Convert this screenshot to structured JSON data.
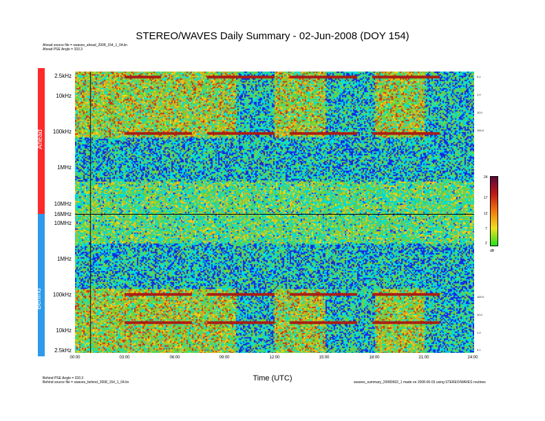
{
  "title": "STEREO/WAVES Daily Summary - 02-Jun-2008 (DOY 154)",
  "header_meta": {
    "ahead_source": "Ahead source file = swaves_ahead_2008_154_1_04.lin",
    "ahead_pse": "Ahead PSE Angle = 333.3"
  },
  "footer_meta": {
    "behind_pse": "Behind PSE Angle = 333.3",
    "behind_source": "Behind source file = swaves_behind_2008_154_1_04.lin",
    "generated": "swaves_summary_20080602_1 made on 2008-06-03 using STEREO/WAVES routines"
  },
  "sidebar": {
    "ahead_label": "Ahead",
    "behind_label": "Behind",
    "ahead_color": "#ff2a2a",
    "behind_color": "#2d9bea"
  },
  "axis": {
    "xlabel": "Time (UTC)",
    "x_ticks": [
      "00:00",
      "03:00",
      "06:00",
      "09:00",
      "12:00",
      "15:00",
      "18:00",
      "21:00",
      "24:00"
    ],
    "ahead_y_ticks": [
      "2.5kHz",
      "10kHz",
      "100kHz",
      "1MHz",
      "10MHz",
      "16MHz"
    ],
    "behind_y_ticks": [
      "10MHz",
      "1MHz",
      "100kHz",
      "10kHz",
      "2.5kHz"
    ],
    "right_ticks_ahead": [
      "0.1",
      "1.0",
      "10.0",
      "100.0"
    ],
    "right_ticks_behind": [
      "100.0",
      "10.0",
      "1.0",
      "0.1"
    ]
  },
  "colorbar": {
    "labels": [
      "24",
      "17",
      "12",
      "7",
      "2"
    ],
    "unit": "dB"
  },
  "chart_data": {
    "type": "heatmap",
    "title": "STEREO/WAVES Daily Summary - 02-Jun-2008 (DOY 154)",
    "xlabel": "Time (UTC)",
    "x_range": [
      "00:00",
      "24:00"
    ],
    "panels": [
      {
        "name": "Ahead",
        "y_range": [
          "2.5kHz",
          "16MHz"
        ],
        "y_scale": "log"
      },
      {
        "name": "Behind",
        "y_range": [
          "2.5kHz",
          "16MHz"
        ],
        "y_scale": "log"
      }
    ],
    "color_scale_db": [
      2,
      7,
      12,
      17,
      24
    ]
  }
}
